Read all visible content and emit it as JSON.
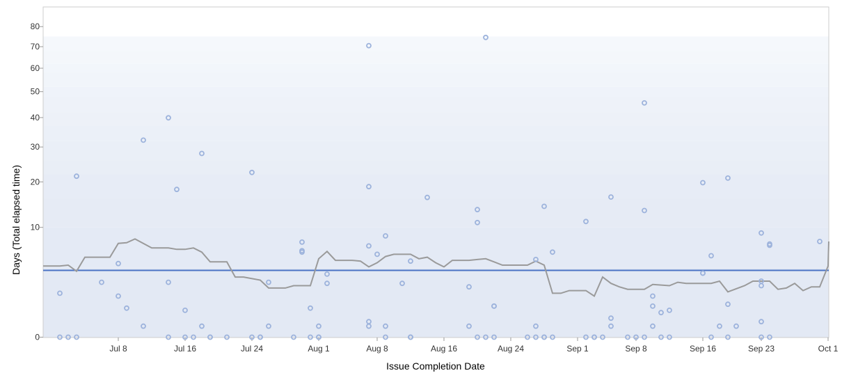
{
  "chart_data": {
    "type": "scatter",
    "xlabel": "Issue Completion Date",
    "ylabel": "Days (Total elapsed time)",
    "x_range": [
      "2025-06-29",
      "2025-10-01"
    ],
    "y_scale": "sqrt",
    "y_range": [
      0,
      85
    ],
    "y_ticks": [
      0,
      10,
      20,
      30,
      40,
      50,
      60,
      70,
      80
    ],
    "x_ticks": [
      {
        "date": "2025-07-08",
        "label": "Jul 8"
      },
      {
        "date": "2025-07-16",
        "label": "Jul 16"
      },
      {
        "date": "2025-07-24",
        "label": "Jul 24"
      },
      {
        "date": "2025-08-01",
        "label": "Aug 1"
      },
      {
        "date": "2025-08-08",
        "label": "Aug 8"
      },
      {
        "date": "2025-08-16",
        "label": "Aug 16"
      },
      {
        "date": "2025-08-24",
        "label": "Aug 24"
      },
      {
        "date": "2025-09-01",
        "label": "Sep 1"
      },
      {
        "date": "2025-09-08",
        "label": "Sep 8"
      },
      {
        "date": "2025-09-16",
        "label": "Sep 16"
      },
      {
        "date": "2025-09-23",
        "label": "Sep 23"
      },
      {
        "date": "2025-10-01",
        "label": "Oct 1"
      }
    ],
    "mean_line": 3.7,
    "colors": {
      "points": "#9db3dc",
      "rolling_average": "#9a9a9a",
      "mean_line": "#4a72c4",
      "band_dark": "#e3e9f4",
      "band_light": "#f5f8fc"
    },
    "points": [
      {
        "x": "2025-07-01",
        "y": 0
      },
      {
        "x": "2025-07-01",
        "y": 1.6
      },
      {
        "x": "2025-07-02",
        "y": 0
      },
      {
        "x": "2025-07-03",
        "y": 21.5
      },
      {
        "x": "2025-07-03",
        "y": 0
      },
      {
        "x": "2025-07-06",
        "y": 2.5
      },
      {
        "x": "2025-07-08",
        "y": 4.5
      },
      {
        "x": "2025-07-08",
        "y": 1.4
      },
      {
        "x": "2025-07-09",
        "y": 0.7
      },
      {
        "x": "2025-07-11",
        "y": 32.2
      },
      {
        "x": "2025-07-11",
        "y": 0.1
      },
      {
        "x": "2025-07-14",
        "y": 39.9
      },
      {
        "x": "2025-07-14",
        "y": 2.5
      },
      {
        "x": "2025-07-14",
        "y": 0
      },
      {
        "x": "2025-07-15",
        "y": 18.1
      },
      {
        "x": "2025-07-16",
        "y": 0
      },
      {
        "x": "2025-07-16",
        "y": 0.6
      },
      {
        "x": "2025-07-17",
        "y": 0
      },
      {
        "x": "2025-07-18",
        "y": 0.1
      },
      {
        "x": "2025-07-18",
        "y": 28.0
      },
      {
        "x": "2025-07-19",
        "y": 0
      },
      {
        "x": "2025-07-19",
        "y": 0
      },
      {
        "x": "2025-07-21",
        "y": 0
      },
      {
        "x": "2025-07-24",
        "y": 22.5
      },
      {
        "x": "2025-07-24",
        "y": 0
      },
      {
        "x": "2025-07-25",
        "y": 0
      },
      {
        "x": "2025-07-25",
        "y": 0
      },
      {
        "x": "2025-07-26",
        "y": 2.5
      },
      {
        "x": "2025-07-26",
        "y": 0.1
      },
      {
        "x": "2025-07-29",
        "y": 0
      },
      {
        "x": "2025-07-30",
        "y": 7.5
      },
      {
        "x": "2025-07-30",
        "y": 6.2
      },
      {
        "x": "2025-07-30",
        "y": 6.0
      },
      {
        "x": "2025-07-31",
        "y": 0.7
      },
      {
        "x": "2025-07-31",
        "y": 0
      },
      {
        "x": "2025-08-01",
        "y": 0
      },
      {
        "x": "2025-08-01",
        "y": 0.1
      },
      {
        "x": "2025-08-01",
        "y": 0
      },
      {
        "x": "2025-08-02",
        "y": 3.3
      },
      {
        "x": "2025-08-02",
        "y": 2.4
      },
      {
        "x": "2025-08-07",
        "y": 70.5
      },
      {
        "x": "2025-08-07",
        "y": 6.9
      },
      {
        "x": "2025-08-07",
        "y": 0.2
      },
      {
        "x": "2025-08-07",
        "y": 0.1
      },
      {
        "x": "2025-08-07",
        "y": 18.8
      },
      {
        "x": "2025-08-08",
        "y": 5.7
      },
      {
        "x": "2025-08-09",
        "y": 8.5
      },
      {
        "x": "2025-08-09",
        "y": 0
      },
      {
        "x": "2025-08-09",
        "y": 0.1
      },
      {
        "x": "2025-08-11",
        "y": 2.4
      },
      {
        "x": "2025-08-12",
        "y": 0
      },
      {
        "x": "2025-08-12",
        "y": 0
      },
      {
        "x": "2025-08-12",
        "y": 4.8
      },
      {
        "x": "2025-08-12",
        "y": 0
      },
      {
        "x": "2025-08-14",
        "y": 16.2
      },
      {
        "x": "2025-08-19",
        "y": 2.1
      },
      {
        "x": "2025-08-19",
        "y": 0.1
      },
      {
        "x": "2025-08-20",
        "y": 0
      },
      {
        "x": "2025-08-20",
        "y": 13.5
      },
      {
        "x": "2025-08-20",
        "y": 10.9
      },
      {
        "x": "2025-08-21",
        "y": 0
      },
      {
        "x": "2025-08-21",
        "y": 74.5
      },
      {
        "x": "2025-08-22",
        "y": 0.8
      },
      {
        "x": "2025-08-22",
        "y": 0
      },
      {
        "x": "2025-08-22",
        "y": 0.8
      },
      {
        "x": "2025-08-26",
        "y": 0
      },
      {
        "x": "2025-08-27",
        "y": 5.0
      },
      {
        "x": "2025-08-27",
        "y": 0.1
      },
      {
        "x": "2025-08-27",
        "y": 0
      },
      {
        "x": "2025-08-28",
        "y": 14.2
      },
      {
        "x": "2025-08-28",
        "y": 0
      },
      {
        "x": "2025-08-28",
        "y": 0
      },
      {
        "x": "2025-08-29",
        "y": 6.0
      },
      {
        "x": "2025-08-29",
        "y": 0
      },
      {
        "x": "2025-09-02",
        "y": 11.1
      },
      {
        "x": "2025-09-02",
        "y": 0
      },
      {
        "x": "2025-09-03",
        "y": 0
      },
      {
        "x": "2025-09-03",
        "y": 0
      },
      {
        "x": "2025-09-04",
        "y": 0
      },
      {
        "x": "2025-09-05",
        "y": 0.1
      },
      {
        "x": "2025-09-05",
        "y": 16.3
      },
      {
        "x": "2025-09-05",
        "y": 0.3
      },
      {
        "x": "2025-09-07",
        "y": 0
      },
      {
        "x": "2025-09-08",
        "y": 0
      },
      {
        "x": "2025-09-09",
        "y": 45.5
      },
      {
        "x": "2025-09-09",
        "y": 13.3
      },
      {
        "x": "2025-09-09",
        "y": 0
      },
      {
        "x": "2025-09-10",
        "y": 1.4
      },
      {
        "x": "2025-09-10",
        "y": 0.8
      },
      {
        "x": "2025-09-10",
        "y": 0.1
      },
      {
        "x": "2025-09-11",
        "y": 0
      },
      {
        "x": "2025-09-11",
        "y": 0.5
      },
      {
        "x": "2025-09-12",
        "y": 0.6
      },
      {
        "x": "2025-09-12",
        "y": 0
      },
      {
        "x": "2025-09-16",
        "y": 19.8
      },
      {
        "x": "2025-09-16",
        "y": 3.4
      },
      {
        "x": "2025-09-16",
        "y": 3.4
      },
      {
        "x": "2025-09-17",
        "y": 5.5
      },
      {
        "x": "2025-09-17",
        "y": 0
      },
      {
        "x": "2025-09-18",
        "y": 0.1
      },
      {
        "x": "2025-09-19",
        "y": 21.0
      },
      {
        "x": "2025-09-19",
        "y": 0.9
      },
      {
        "x": "2025-09-19",
        "y": 0
      },
      {
        "x": "2025-09-20",
        "y": 0.1
      },
      {
        "x": "2025-09-23",
        "y": 9.0
      },
      {
        "x": "2025-09-23",
        "y": 2.6
      },
      {
        "x": "2025-09-23",
        "y": 2.2
      },
      {
        "x": "2025-09-23",
        "y": 0.2
      },
      {
        "x": "2025-09-23",
        "y": 0
      },
      {
        "x": "2025-09-24",
        "y": 7.2
      },
      {
        "x": "2025-09-24",
        "y": 7.0
      },
      {
        "x": "2025-09-24",
        "y": 0
      },
      {
        "x": "2025-09-30",
        "y": 7.6
      }
    ],
    "rolling_average": [
      {
        "x": "2025-06-29",
        "y": 4.2
      },
      {
        "x": "2025-07-01",
        "y": 4.2
      },
      {
        "x": "2025-07-02",
        "y": 4.3
      },
      {
        "x": "2025-07-03",
        "y": 3.6
      },
      {
        "x": "2025-07-04",
        "y": 5.3
      },
      {
        "x": "2025-07-07",
        "y": 5.3
      },
      {
        "x": "2025-07-08",
        "y": 7.3
      },
      {
        "x": "2025-07-09",
        "y": 7.4
      },
      {
        "x": "2025-07-10",
        "y": 8.0
      },
      {
        "x": "2025-07-12",
        "y": 6.6
      },
      {
        "x": "2025-07-14",
        "y": 6.6
      },
      {
        "x": "2025-07-15",
        "y": 6.4
      },
      {
        "x": "2025-07-16",
        "y": 6.4
      },
      {
        "x": "2025-07-17",
        "y": 6.6
      },
      {
        "x": "2025-07-18",
        "y": 6.0
      },
      {
        "x": "2025-07-19",
        "y": 4.7
      },
      {
        "x": "2025-07-21",
        "y": 4.7
      },
      {
        "x": "2025-07-22",
        "y": 3.0
      },
      {
        "x": "2025-07-23",
        "y": 3.0
      },
      {
        "x": "2025-07-25",
        "y": 2.7
      },
      {
        "x": "2025-07-26",
        "y": 2.0
      },
      {
        "x": "2025-07-28",
        "y": 2.0
      },
      {
        "x": "2025-07-29",
        "y": 2.2
      },
      {
        "x": "2025-07-31",
        "y": 2.2
      },
      {
        "x": "2025-08-01",
        "y": 5.1
      },
      {
        "x": "2025-08-02",
        "y": 6.1
      },
      {
        "x": "2025-08-03",
        "y": 4.9
      },
      {
        "x": "2025-08-05",
        "y": 4.9
      },
      {
        "x": "2025-08-06",
        "y": 4.8
      },
      {
        "x": "2025-08-07",
        "y": 4.1
      },
      {
        "x": "2025-08-08",
        "y": 4.6
      },
      {
        "x": "2025-08-09",
        "y": 5.4
      },
      {
        "x": "2025-08-10",
        "y": 5.7
      },
      {
        "x": "2025-08-12",
        "y": 5.7
      },
      {
        "x": "2025-08-13",
        "y": 5.1
      },
      {
        "x": "2025-08-14",
        "y": 5.3
      },
      {
        "x": "2025-08-15",
        "y": 4.6
      },
      {
        "x": "2025-08-16",
        "y": 4.1
      },
      {
        "x": "2025-08-17",
        "y": 4.9
      },
      {
        "x": "2025-08-19",
        "y": 4.9
      },
      {
        "x": "2025-08-20",
        "y": 5.0
      },
      {
        "x": "2025-08-21",
        "y": 5.1
      },
      {
        "x": "2025-08-22",
        "y": 4.7
      },
      {
        "x": "2025-08-23",
        "y": 4.3
      },
      {
        "x": "2025-08-26",
        "y": 4.3
      },
      {
        "x": "2025-08-27",
        "y": 4.8
      },
      {
        "x": "2025-08-28",
        "y": 4.3
      },
      {
        "x": "2025-08-29",
        "y": 1.6
      },
      {
        "x": "2025-08-30",
        "y": 1.6
      },
      {
        "x": "2025-08-31",
        "y": 1.8
      },
      {
        "x": "2025-09-02",
        "y": 1.8
      },
      {
        "x": "2025-09-03",
        "y": 1.4
      },
      {
        "x": "2025-09-04",
        "y": 3.0
      },
      {
        "x": "2025-09-05",
        "y": 2.4
      },
      {
        "x": "2025-09-06",
        "y": 2.1
      },
      {
        "x": "2025-09-07",
        "y": 1.9
      },
      {
        "x": "2025-09-09",
        "y": 1.9
      },
      {
        "x": "2025-09-10",
        "y": 2.3
      },
      {
        "x": "2025-09-12",
        "y": 2.2
      },
      {
        "x": "2025-09-13",
        "y": 2.5
      },
      {
        "x": "2025-09-14",
        "y": 2.4
      },
      {
        "x": "2025-09-17",
        "y": 2.4
      },
      {
        "x": "2025-09-18",
        "y": 2.6
      },
      {
        "x": "2025-09-19",
        "y": 1.7
      },
      {
        "x": "2025-09-21",
        "y": 2.2
      },
      {
        "x": "2025-09-22",
        "y": 2.6
      },
      {
        "x": "2025-09-24",
        "y": 2.6
      },
      {
        "x": "2025-09-25",
        "y": 1.9
      },
      {
        "x": "2025-09-26",
        "y": 2.0
      },
      {
        "x": "2025-09-27",
        "y": 2.4
      },
      {
        "x": "2025-09-28",
        "y": 1.8
      },
      {
        "x": "2025-09-29",
        "y": 2.1
      },
      {
        "x": "2025-09-30",
        "y": 2.1
      },
      {
        "x": "2025-10-01",
        "y": 4.2
      },
      {
        "x": "2025-10-02",
        "y": 7.6
      }
    ]
  }
}
